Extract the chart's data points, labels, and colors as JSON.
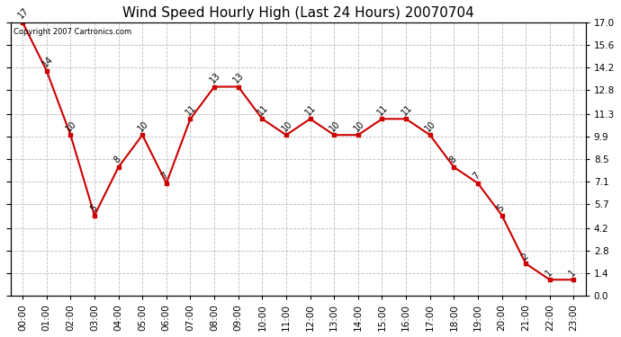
{
  "title": "Wind Speed Hourly High (Last 24 Hours) 20070704",
  "copyright_text": "Copyright 2007 Cartronics.com",
  "hours": [
    "00:00",
    "01:00",
    "02:00",
    "03:00",
    "04:00",
    "05:00",
    "06:00",
    "07:00",
    "08:00",
    "09:00",
    "10:00",
    "11:00",
    "12:00",
    "13:00",
    "14:00",
    "15:00",
    "16:00",
    "17:00",
    "18:00",
    "19:00",
    "20:00",
    "21:00",
    "22:00",
    "23:00"
  ],
  "values": [
    17,
    14,
    10,
    5,
    8,
    10,
    7,
    11,
    13,
    13,
    11,
    10,
    11,
    10,
    10,
    11,
    11,
    10,
    8,
    7,
    5,
    2,
    1,
    1
  ],
  "line_color": "#cc0000",
  "marker_color": "#cc0000",
  "background_color": "#ffffff",
  "plot_bg_color": "#ffffff",
  "grid_color": "#bbbbbb",
  "y_ticks": [
    0.0,
    1.4,
    2.8,
    4.2,
    5.7,
    7.1,
    8.5,
    9.9,
    11.3,
    12.8,
    14.2,
    15.6,
    17.0
  ],
  "ylim": [
    0.0,
    17.0
  ],
  "title_fontsize": 11,
  "label_fontsize": 7.5,
  "annotation_fontsize": 7
}
